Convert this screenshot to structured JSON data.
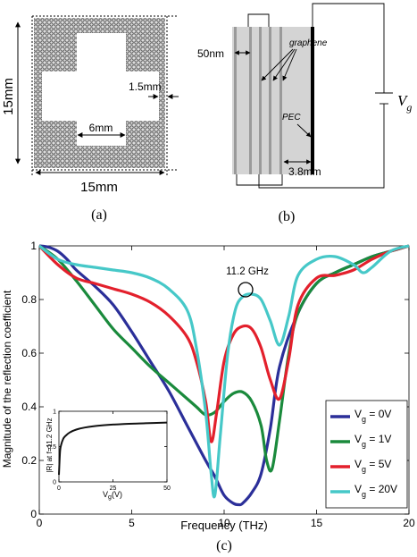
{
  "panel_a": {
    "caption": "(a)",
    "height_label": "15mm",
    "width_label": "15mm",
    "gap_label": "1.5mm",
    "cross_label": "6mm"
  },
  "panel_b": {
    "caption": "(b)",
    "spacing_label": "50nm",
    "graphene_label": "graphene",
    "pec_label": "PEC",
    "thickness_label": "3.8mm",
    "voltage_label": "V",
    "voltage_sub": "g"
  },
  "panel_c": {
    "caption": "(c)",
    "annotation": "11.2 GHz"
  },
  "chart_data": [
    {
      "type": "line",
      "xlabel": "Frequency (THz)",
      "ylabel": "Magnitude of the reflection coefficient",
      "xlim": [
        0,
        20
      ],
      "ylim": [
        0,
        1
      ],
      "xticks": [
        "0",
        "5",
        "10",
        "15",
        "20"
      ],
      "yticks": [
        "0",
        "0.2",
        "0.4",
        "0.6",
        "0.8",
        "1"
      ],
      "legend_position": "bottom-right",
      "series": [
        {
          "name": "V_g = 0V",
          "legend": {
            "v": "V",
            "sub": "g",
            "value": " = 0V"
          },
          "color": "#2b2f99",
          "x": [
            0,
            0.5,
            1,
            1.5,
            2,
            3,
            4,
            5,
            6,
            7,
            8,
            9,
            9.5,
            10,
            10.5,
            10.8,
            11,
            11.5,
            12,
            12.5,
            13,
            14,
            15,
            16,
            17,
            18,
            19,
            20
          ],
          "y": [
            1.0,
            0.995,
            0.98,
            0.95,
            0.91,
            0.85,
            0.78,
            0.68,
            0.57,
            0.46,
            0.33,
            0.2,
            0.14,
            0.07,
            0.04,
            0.035,
            0.04,
            0.08,
            0.15,
            0.32,
            0.55,
            0.75,
            0.86,
            0.9,
            0.93,
            0.96,
            0.98,
            1.0
          ]
        },
        {
          "name": "V_g = 1V",
          "legend": {
            "v": "V",
            "sub": "g",
            "value": " = 1V"
          },
          "color": "#1a8a3c",
          "x": [
            0,
            1,
            2,
            3,
            4,
            5,
            6,
            7,
            8,
            8.5,
            9,
            9.5,
            10,
            10.5,
            11,
            11.5,
            12,
            12.3,
            12.6,
            13,
            13.5,
            14,
            15,
            16,
            17,
            18,
            19,
            20
          ],
          "y": [
            1.0,
            0.95,
            0.87,
            0.78,
            0.69,
            0.62,
            0.55,
            0.49,
            0.43,
            0.4,
            0.37,
            0.38,
            0.42,
            0.45,
            0.455,
            0.42,
            0.33,
            0.2,
            0.17,
            0.35,
            0.6,
            0.75,
            0.86,
            0.9,
            0.93,
            0.96,
            0.98,
            1.0
          ]
        },
        {
          "name": "V_g = 5V",
          "legend": {
            "v": "V",
            "sub": "g",
            "value": " = 5V"
          },
          "color": "#e3202c",
          "x": [
            0,
            1,
            2,
            3,
            4,
            5,
            6,
            7,
            8,
            8.5,
            9,
            9.3,
            9.6,
            10,
            10.5,
            11,
            11.5,
            12,
            12.5,
            13,
            13.5,
            14,
            15,
            16,
            17,
            18,
            19,
            20
          ],
          "y": [
            1.0,
            0.93,
            0.88,
            0.86,
            0.84,
            0.82,
            0.79,
            0.74,
            0.66,
            0.57,
            0.42,
            0.27,
            0.38,
            0.57,
            0.67,
            0.7,
            0.69,
            0.62,
            0.5,
            0.43,
            0.58,
            0.78,
            0.88,
            0.89,
            0.91,
            0.95,
            0.98,
            1.0
          ]
        },
        {
          "name": "V_g = 20V",
          "legend": {
            "v": "V",
            "sub": "g",
            "value": " = 20V"
          },
          "color": "#46c8c8",
          "x": [
            0,
            1,
            2,
            3,
            4,
            5,
            6,
            7,
            8,
            8.5,
            9,
            9.3,
            9.5,
            9.8,
            10.2,
            10.6,
            11,
            11.5,
            12,
            12.5,
            13,
            13.5,
            14,
            15,
            16,
            17,
            17.5,
            18,
            19,
            20
          ],
          "y": [
            1.0,
            0.95,
            0.93,
            0.92,
            0.91,
            0.9,
            0.88,
            0.84,
            0.76,
            0.62,
            0.38,
            0.15,
            0.07,
            0.3,
            0.6,
            0.76,
            0.81,
            0.82,
            0.8,
            0.72,
            0.63,
            0.74,
            0.89,
            0.95,
            0.96,
            0.93,
            0.9,
            0.92,
            0.98,
            1.0
          ]
        }
      ]
    },
    {
      "type": "line",
      "xlabel": "V_g (V)",
      "xlabel_parts": {
        "v": "V",
        "sub": "g",
        "rest": "(V)"
      },
      "ylabel": "|R| at f=11.2 GHz",
      "xlim": [
        0,
        50
      ],
      "ylim": [
        0,
        1
      ],
      "xticks": [
        "0",
        "25",
        "50"
      ],
      "yticks": [
        "0",
        "0.5",
        "1"
      ],
      "series": [
        {
          "color": "#111111",
          "x": [
            0,
            0.5,
            1,
            2,
            3,
            5,
            8,
            12,
            20,
            30,
            40,
            50
          ],
          "y": [
            0.1,
            0.42,
            0.52,
            0.61,
            0.65,
            0.7,
            0.74,
            0.77,
            0.8,
            0.82,
            0.83,
            0.84
          ]
        }
      ]
    }
  ]
}
